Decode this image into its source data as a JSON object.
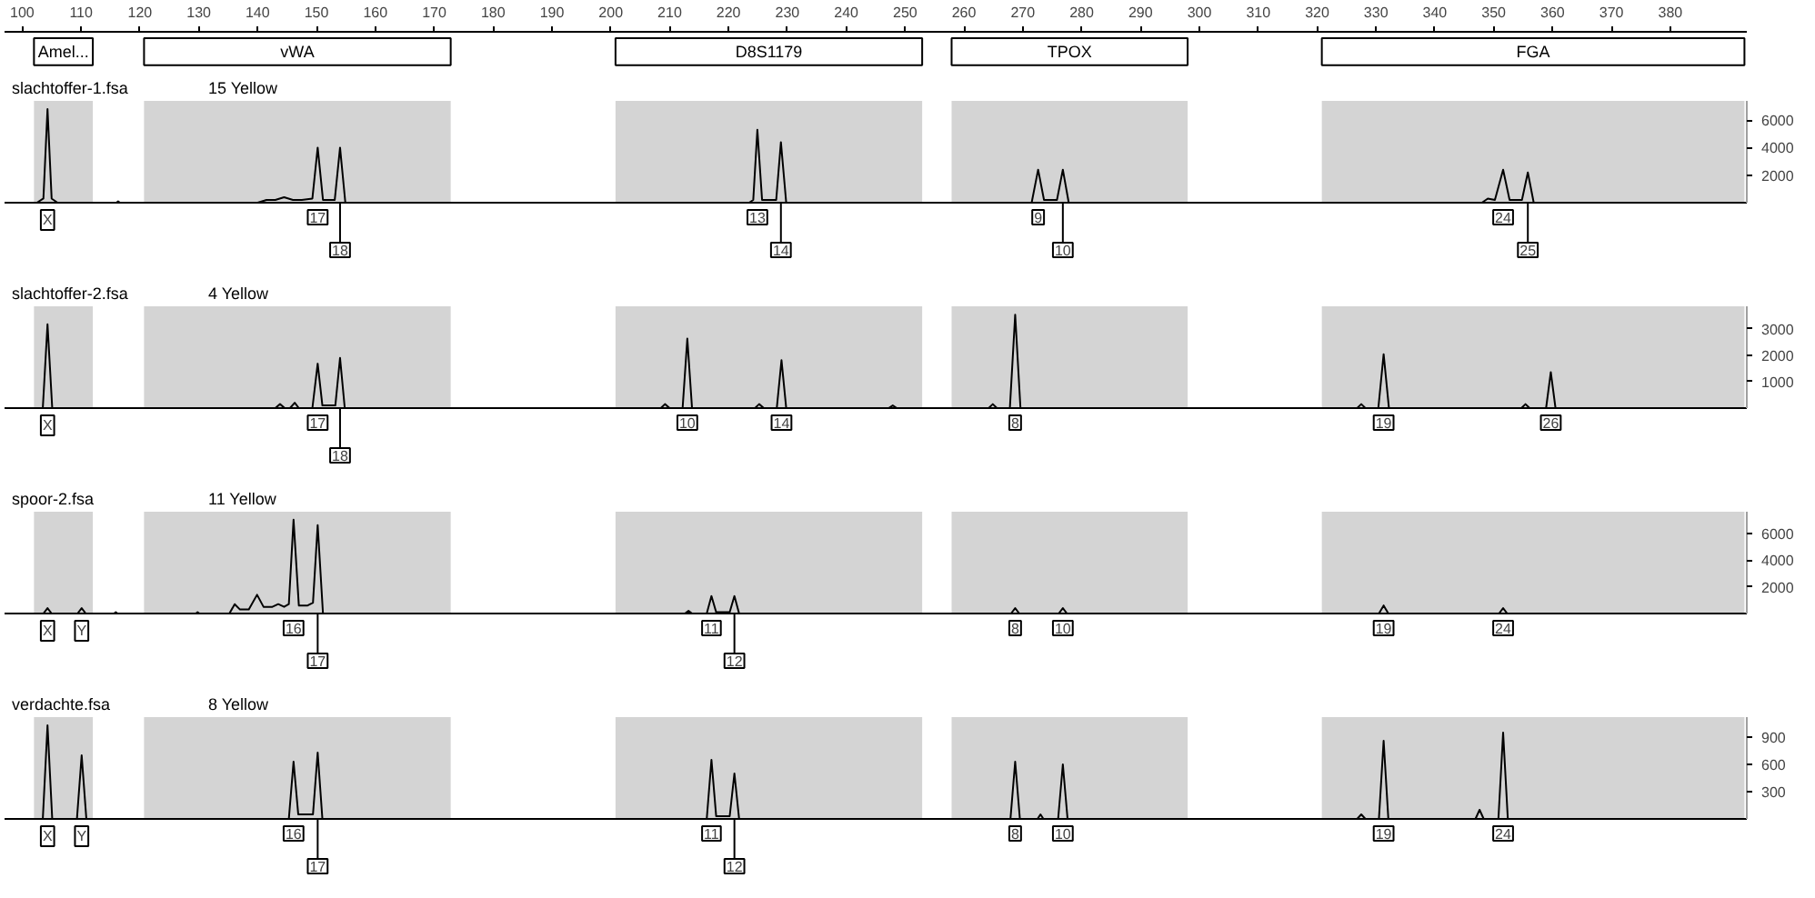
{
  "chart_data": [
    {
      "type": "line",
      "title": "slachtoffer-1.fsa",
      "subtitle": "15 Yellow",
      "xlim": [
        97,
        393
      ],
      "xticks": [
        100,
        110,
        120,
        130,
        140,
        150,
        160,
        170,
        180,
        190,
        200,
        210,
        220,
        230,
        240,
        250,
        260,
        270,
        280,
        290,
        300,
        310,
        320,
        330,
        340,
        350,
        360,
        370,
        380
      ],
      "ylim": [
        0,
        7400
      ],
      "yticks": [
        2000,
        4000,
        6000
      ],
      "series": [
        {
          "color": "#000000",
          "x": [
            97,
            102.5,
            103.6,
            104.3,
            105.0,
            106,
            116,
            116.3,
            116.6,
            140,
            141.5,
            143,
            144.5,
            146,
            147.5,
            149.3,
            150.2,
            151.1,
            153.1,
            154.0,
            154.9,
            223.5,
            224.2,
            224.9,
            225.7,
            228.1,
            228.9,
            229.8,
            271.5,
            272.6,
            273.6,
            275.8,
            276.8,
            277.8,
            348,
            349,
            350.2,
            351.6,
            352.7,
            354.8,
            355.8,
            356.8,
            393
          ],
          "values": [
            0,
            0,
            300,
            6800,
            300,
            0,
            0,
            100,
            0,
            0,
            200,
            200,
            400,
            200,
            200,
            300,
            4000,
            200,
            200,
            4000,
            0,
            0,
            200,
            5300,
            200,
            200,
            4400,
            0,
            0,
            2400,
            200,
            200,
            2400,
            0,
            0,
            300,
            200,
            2400,
            200,
            200,
            2200,
            0,
            0
          ]
        }
      ],
      "bands": [
        {
          "axis": "x",
          "from": 102,
          "to": 112,
          "label": "Amel...",
          "color": "#d4d4d4"
        },
        {
          "axis": "x",
          "from": 120.7,
          "to": 172.8,
          "label": "vWA",
          "color": "#d4d4d4"
        },
        {
          "axis": "x",
          "from": 200.8,
          "to": 252.9,
          "label": "D8S1179",
          "color": "#d4d4d4"
        },
        {
          "axis": "x",
          "from": 257.9,
          "to": 298,
          "label": "TPOX",
          "color": "#d4d4d4"
        },
        {
          "axis": "x",
          "from": 320.8,
          "to": 392.6,
          "label": "FGA",
          "color": "#d4d4d4"
        }
      ],
      "annotations": [
        {
          "text": "X",
          "x": 104.3,
          "y": 0
        },
        {
          "text": "17",
          "x": 150.2,
          "y": 0
        },
        {
          "text": "18",
          "x": 154.0,
          "y": 0
        },
        {
          "text": "13",
          "x": 224.9,
          "y": 0
        },
        {
          "text": "14",
          "x": 228.9,
          "y": 0
        },
        {
          "text": "9",
          "x": 272.6,
          "y": 0
        },
        {
          "text": "10",
          "x": 276.8,
          "y": 0
        },
        {
          "text": "24",
          "x": 351.6,
          "y": 0
        },
        {
          "text": "25",
          "x": 355.8,
          "y": 0
        }
      ]
    },
    {
      "type": "line",
      "title": "slachtoffer-2.fsa",
      "subtitle": "4 Yellow",
      "xlim": [
        97,
        393
      ],
      "ylim": [
        0,
        3850
      ],
      "yticks": [
        1000,
        2000,
        3000
      ],
      "tick_labels": "y",
      "series": [
        {
          "color": "#000000",
          "x": [
            97,
            103.5,
            104.3,
            105.1,
            143,
            143.8,
            144.6,
            145.5,
            146.3,
            147,
            149.3,
            150.2,
            151,
            153.2,
            154.0,
            154.8,
            208.5,
            209.2,
            210,
            212.2,
            213.0,
            213.8,
            224.5,
            225.2,
            226,
            228.2,
            229.0,
            229.8,
            247.2,
            247.9,
            248.6,
            264.2,
            264.9,
            265.6,
            267.8,
            268.7,
            269.6,
            326.8,
            327.5,
            328.2,
            330.4,
            331.3,
            332.2,
            354.7,
            355.4,
            356.1,
            358.9,
            359.7,
            360.5,
            393
          ],
          "values": [
            0,
            0,
            3170,
            0,
            0,
            150,
            0,
            0,
            200,
            0,
            0,
            1680,
            100,
            100,
            1900,
            0,
            0,
            150,
            0,
            0,
            2630,
            0,
            0,
            150,
            0,
            0,
            1810,
            0,
            0,
            100,
            0,
            0,
            150,
            0,
            0,
            3530,
            0,
            0,
            150,
            0,
            0,
            2040,
            0,
            0,
            150,
            0,
            0,
            1360,
            0,
            0
          ]
        }
      ],
      "bands": [
        {
          "axis": "x",
          "from": 102,
          "to": 112,
          "color": "#d4d4d4"
        },
        {
          "axis": "x",
          "from": 120.7,
          "to": 172.8,
          "color": "#d4d4d4"
        },
        {
          "axis": "x",
          "from": 200.8,
          "to": 252.9,
          "color": "#d4d4d4"
        },
        {
          "axis": "x",
          "from": 257.9,
          "to": 298,
          "color": "#d4d4d4"
        },
        {
          "axis": "x",
          "from": 320.8,
          "to": 392.6,
          "color": "#d4d4d4"
        }
      ],
      "annotations": [
        {
          "text": "X",
          "x": 104.3,
          "y": 0
        },
        {
          "text": "17",
          "x": 150.2,
          "y": 0
        },
        {
          "text": "18",
          "x": 154.0,
          "y": 0
        },
        {
          "text": "10",
          "x": 213.0,
          "y": 0
        },
        {
          "text": "14",
          "x": 229.0,
          "y": 0
        },
        {
          "text": "8",
          "x": 268.7,
          "y": 0
        },
        {
          "text": "19",
          "x": 331.3,
          "y": 0
        },
        {
          "text": "26",
          "x": 359.7,
          "y": 0
        }
      ]
    },
    {
      "type": "line",
      "title": "spoor-2.fsa",
      "subtitle": "11 Yellow",
      "xlim": [
        97,
        393
      ],
      "ylim": [
        0,
        7600
      ],
      "yticks": [
        2000,
        4000,
        6000
      ],
      "tick_labels": "y",
      "series": [
        {
          "color": "#000000",
          "x": [
            97,
            103.6,
            104.3,
            105,
            109.4,
            110.1,
            110.8,
            115.6,
            115.9,
            116.2,
            129.5,
            129.8,
            130.1,
            135.2,
            136.1,
            137,
            138.5,
            139.9,
            141,
            142.5,
            143.5,
            144.5,
            145.3,
            146.1,
            147,
            148.5,
            149.4,
            150.2,
            151.1,
            212.6,
            213.2,
            213.8,
            216.3,
            217.1,
            217.9,
            220.2,
            221.0,
            221.8,
            268,
            268.7,
            269.4,
            276.1,
            276.8,
            277.5,
            330.5,
            331.3,
            332.1,
            350.9,
            351.6,
            352.3,
            393
          ],
          "values": [
            0,
            0,
            400,
            0,
            0,
            400,
            0,
            0,
            100,
            0,
            0,
            100,
            0,
            0,
            700,
            300,
            300,
            1400,
            500,
            500,
            700,
            500,
            700,
            7000,
            600,
            600,
            800,
            6600,
            0,
            0,
            200,
            0,
            0,
            1300,
            100,
            100,
            1300,
            0,
            0,
            400,
            0,
            0,
            400,
            0,
            0,
            600,
            0,
            0,
            400,
            0,
            0
          ]
        }
      ],
      "bands": [
        {
          "axis": "x",
          "from": 102,
          "to": 112,
          "color": "#d4d4d4"
        },
        {
          "axis": "x",
          "from": 120.7,
          "to": 172.8,
          "color": "#d4d4d4"
        },
        {
          "axis": "x",
          "from": 200.8,
          "to": 252.9,
          "color": "#d4d4d4"
        },
        {
          "axis": "x",
          "from": 257.9,
          "to": 298,
          "color": "#d4d4d4"
        },
        {
          "axis": "x",
          "from": 320.8,
          "to": 392.6,
          "color": "#d4d4d4"
        }
      ],
      "annotations": [
        {
          "text": "X",
          "x": 104.3,
          "y": 0
        },
        {
          "text": "Y",
          "x": 110.1,
          "y": 0
        },
        {
          "text": "16",
          "x": 146.1,
          "y": 0
        },
        {
          "text": "17",
          "x": 150.2,
          "y": 0
        },
        {
          "text": "11",
          "x": 217.1,
          "y": 0
        },
        {
          "text": "12",
          "x": 221.0,
          "y": 0
        },
        {
          "text": "8",
          "x": 268.7,
          "y": 0
        },
        {
          "text": "10",
          "x": 276.8,
          "y": 0
        },
        {
          "text": "19",
          "x": 331.3,
          "y": 0
        },
        {
          "text": "24",
          "x": 351.6,
          "y": 0
        }
      ]
    },
    {
      "type": "line",
      "title": "verdachte.fsa",
      "subtitle": "8 Yellow",
      "xlim": [
        97,
        393
      ],
      "ylim": [
        0,
        1120
      ],
      "yticks": [
        300,
        600,
        900
      ],
      "tick_labels": "y",
      "series": [
        {
          "color": "#000000",
          "x": [
            97,
            103.5,
            104.3,
            105.1,
            109.3,
            110.1,
            110.9,
            145.3,
            146.1,
            146.9,
            149.4,
            150.2,
            151,
            216.3,
            217.1,
            217.9,
            220.2,
            221.0,
            221.8,
            267.9,
            268.7,
            269.5,
            272.5,
            273,
            273.5,
            276,
            276.8,
            277.6,
            326.8,
            327.5,
            328.2,
            330.5,
            331.3,
            332.1,
            346.9,
            347.6,
            348.3,
            350.8,
            351.6,
            352.4,
            393
          ],
          "values": [
            0,
            0,
            1030,
            0,
            0,
            700,
            0,
            0,
            630,
            50,
            50,
            730,
            0,
            0,
            650,
            30,
            30,
            500,
            0,
            0,
            630,
            0,
            0,
            50,
            0,
            0,
            600,
            0,
            0,
            50,
            0,
            0,
            860,
            0,
            0,
            100,
            0,
            0,
            950,
            0,
            0
          ]
        }
      ],
      "bands": [
        {
          "axis": "x",
          "from": 102,
          "to": 112,
          "color": "#d4d4d4"
        },
        {
          "axis": "x",
          "from": 120.7,
          "to": 172.8,
          "color": "#d4d4d4"
        },
        {
          "axis": "x",
          "from": 200.8,
          "to": 252.9,
          "color": "#d4d4d4"
        },
        {
          "axis": "x",
          "from": 257.9,
          "to": 298,
          "color": "#d4d4d4"
        },
        {
          "axis": "x",
          "from": 320.8,
          "to": 392.6,
          "color": "#d4d4d4"
        }
      ],
      "annotations": [
        {
          "text": "X",
          "x": 104.3,
          "y": 0
        },
        {
          "text": "Y",
          "x": 110.1,
          "y": 0
        },
        {
          "text": "16",
          "x": 146.1,
          "y": 0
        },
        {
          "text": "17",
          "x": 150.2,
          "y": 0
        },
        {
          "text": "11",
          "x": 217.1,
          "y": 0
        },
        {
          "text": "12",
          "x": 221.0,
          "y": 0
        },
        {
          "text": "8",
          "x": 268.7,
          "y": 0
        },
        {
          "text": "10",
          "x": 276.8,
          "y": 0
        },
        {
          "text": "19",
          "x": 331.3,
          "y": 0
        },
        {
          "text": "24",
          "x": 351.6,
          "y": 0
        }
      ]
    }
  ]
}
